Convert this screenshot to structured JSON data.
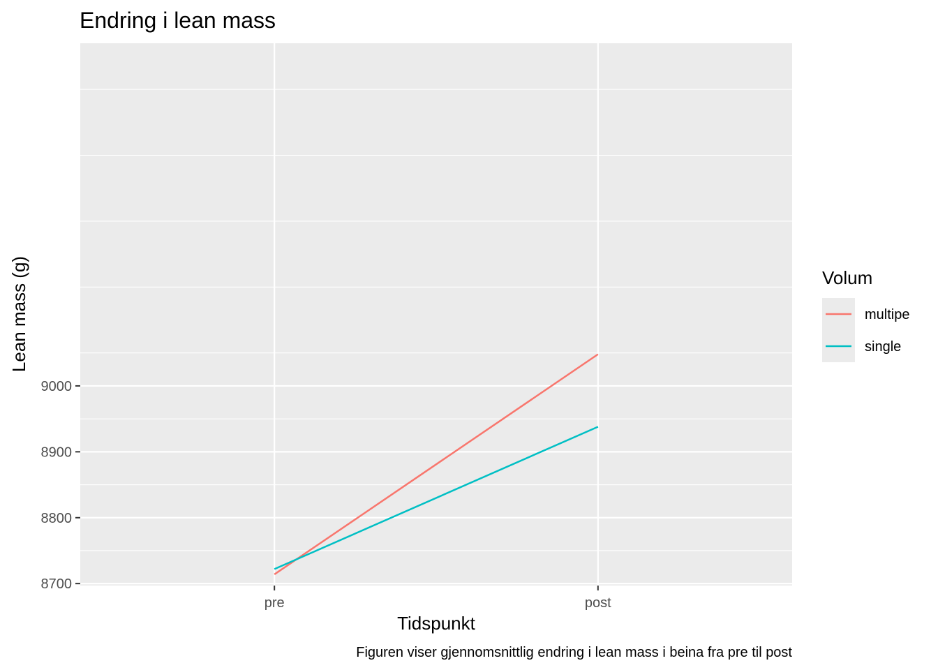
{
  "chart_data": {
    "type": "line",
    "title": "Endring i lean mass",
    "xlabel": "Tidspunkt",
    "ylabel": "Lean mass (g)",
    "caption": "Figuren viser gjennomsnittlig endring i lean mass i beina fra pre til post",
    "categories": [
      "pre",
      "post"
    ],
    "ylim": [
      8697,
      9520
    ],
    "y_ticks": [
      8700,
      8800,
      8900,
      9000
    ],
    "y_tick_labels": [
      "8700",
      "8800",
      "8900",
      "9000"
    ],
    "grid": true,
    "legend": {
      "title": "Volum",
      "position": "right"
    },
    "series": [
      {
        "name": "multipe",
        "color": "#F8766D",
        "values": [
          8714,
          9048
        ]
      },
      {
        "name": "single",
        "color": "#00BFC4",
        "values": [
          8722,
          8938
        ]
      }
    ]
  }
}
